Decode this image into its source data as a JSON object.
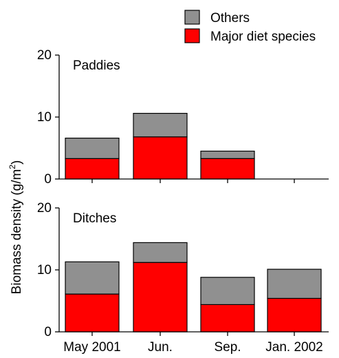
{
  "chart_data": {
    "type": "bar",
    "stacked": true,
    "ylabel": "Biomass density (g/m²)",
    "ylabel_parts": {
      "main": "Biomass density (g/m",
      "sup": "2",
      "close": ")"
    },
    "categories": [
      "May 2001",
      "Jun.",
      "Sep.",
      "Jan. 2002"
    ],
    "legend": {
      "placement": "top-right",
      "entries": [
        {
          "name": "Others",
          "color": "#909090"
        },
        {
          "name": "Major diet species",
          "color": "#ff0000"
        }
      ]
    },
    "panels": [
      {
        "title": "Paddies",
        "ylim": [
          0,
          20
        ],
        "yticks": [
          "0",
          "10",
          "20"
        ],
        "series": [
          {
            "name": "Major diet species",
            "color": "#ff0000",
            "values": [
              3.3,
              6.8,
              3.3,
              null
            ]
          },
          {
            "name": "Others",
            "color": "#909090",
            "values": [
              3.3,
              3.8,
              1.2,
              null
            ]
          }
        ]
      },
      {
        "title": "Ditches",
        "ylim": [
          0,
          20
        ],
        "yticks": [
          "0",
          "10",
          "20"
        ],
        "series": [
          {
            "name": "Major diet species",
            "color": "#ff0000",
            "values": [
              6.1,
              11.2,
              4.4,
              5.4
            ]
          },
          {
            "name": "Others",
            "color": "#909090",
            "values": [
              5.2,
              3.2,
              4.4,
              4.7
            ]
          }
        ]
      }
    ]
  }
}
